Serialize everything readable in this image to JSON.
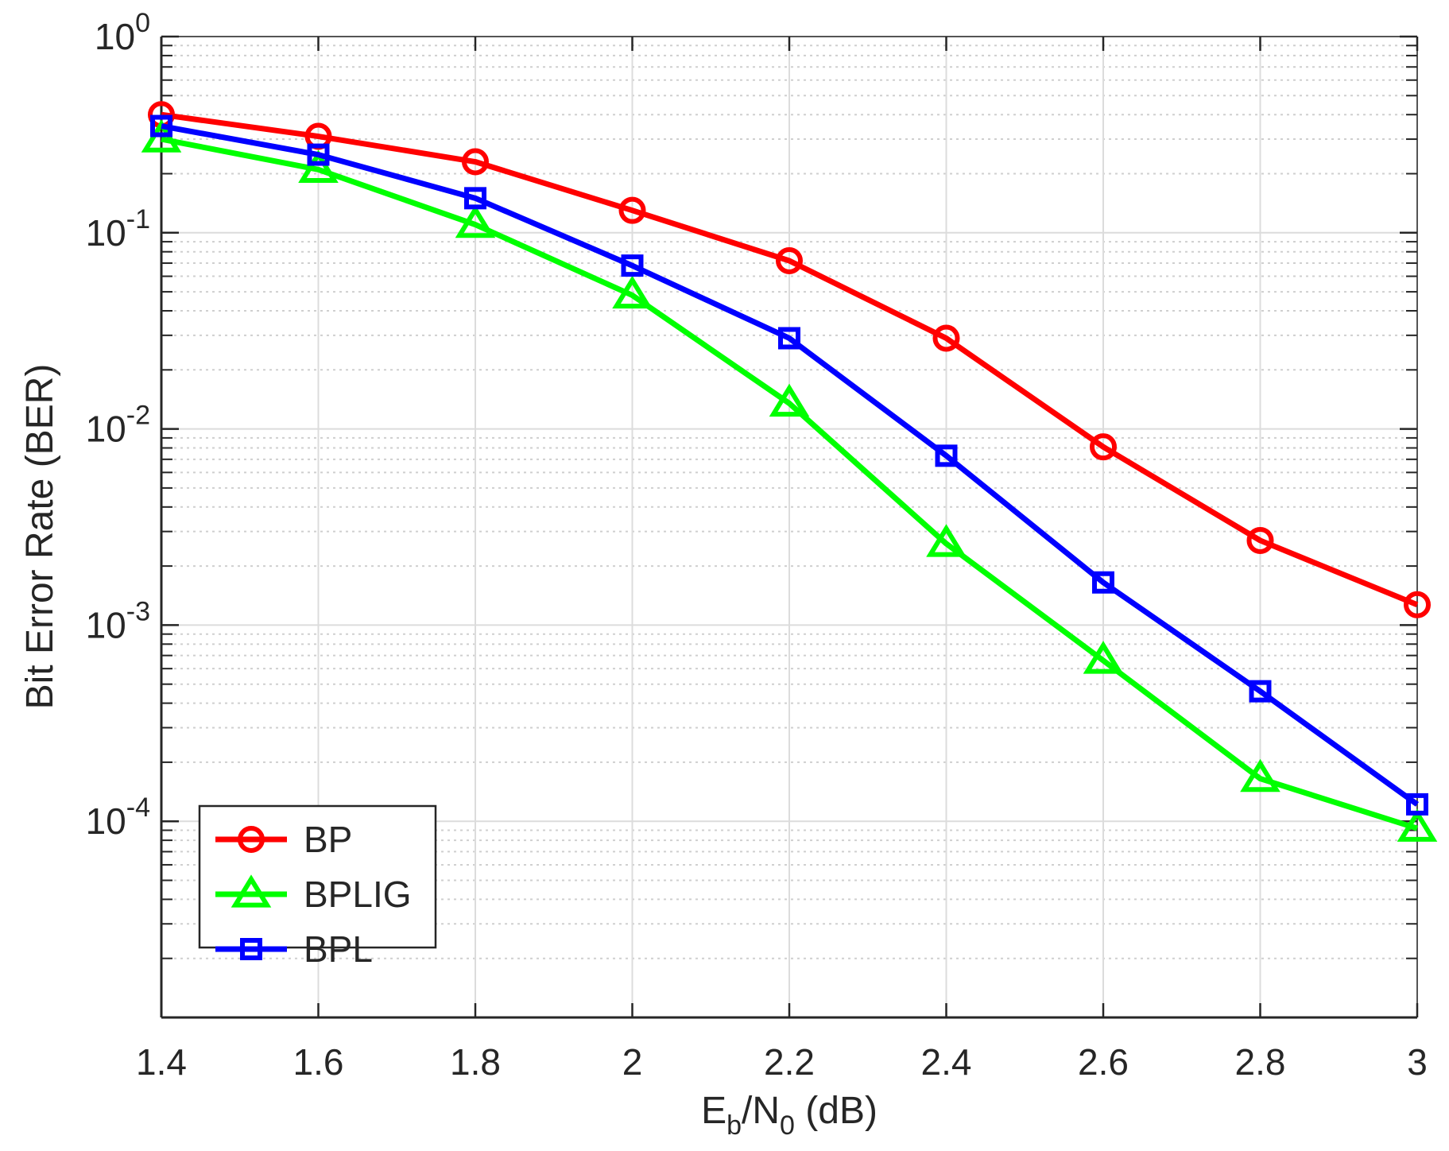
{
  "chart_data": {
    "type": "line",
    "xscale": "linear",
    "yscale": "log",
    "xlim": [
      1.4,
      3.0
    ],
    "ylim_exponents": [
      -5,
      0
    ],
    "x_ticks": [
      1.4,
      1.6,
      1.8,
      2.0,
      2.2,
      2.4,
      2.6,
      2.8,
      3.0
    ],
    "x_tick_labels": [
      "1.4",
      "1.6",
      "1.8",
      "2",
      "2.2",
      "2.4",
      "2.6",
      "2.8",
      "3"
    ],
    "y_ticks": [
      {
        "base": "10",
        "exp": "0",
        "power": 0
      },
      {
        "base": "10",
        "exp": "-1",
        "power": -1
      },
      {
        "base": "10",
        "exp": "-2",
        "power": -2
      },
      {
        "base": "10",
        "exp": "-3",
        "power": -3
      },
      {
        "base": "10",
        "exp": "-4",
        "power": -4
      }
    ],
    "xlabel": {
      "main": "E",
      "sub1": "b",
      "mid": "/N",
      "sub2": "0",
      "tail": " (dB)"
    },
    "ylabel": "Bit Error Rate (BER)",
    "grid": true,
    "legend_position": "lower-left",
    "x": [
      1.4,
      1.6,
      1.8,
      2.0,
      2.2,
      2.4,
      2.6,
      2.8,
      3.0
    ],
    "series": [
      {
        "name": "BP",
        "color": "#ff0000",
        "marker": "circle",
        "values": [
          0.4,
          0.31,
          0.23,
          0.13,
          0.072,
          0.029,
          0.0081,
          0.0027,
          0.00127
        ]
      },
      {
        "name": "BPLIG",
        "color": "#00ff00",
        "marker": "triangle",
        "values": [
          0.3,
          0.21,
          0.11,
          0.048,
          0.0135,
          0.0026,
          0.00066,
          0.000165,
          9.2e-05
        ]
      },
      {
        "name": "BPL",
        "color": "#0000ff",
        "marker": "square",
        "values": [
          0.35,
          0.25,
          0.15,
          0.068,
          0.029,
          0.0073,
          0.00165,
          0.00046,
          0.000122
        ]
      }
    ]
  }
}
